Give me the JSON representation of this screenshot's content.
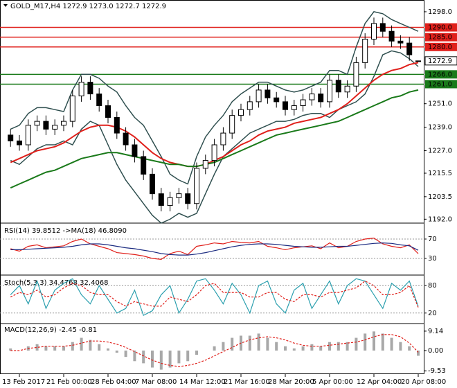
{
  "chart_data": [
    {
      "type": "candlestick",
      "title": "GOLD_M17,H4  1272.9 1273.0 1272.7 1272.9",
      "categories": [
        null,
        "13 Feb 2017",
        null,
        null,
        null,
        null,
        "21 Feb 00:00",
        null,
        null,
        null,
        null,
        "28 Feb 04:00",
        null,
        null,
        null,
        null,
        "7 Mar 08:00",
        null,
        null,
        null,
        null,
        "14 Mar 12:00",
        null,
        null,
        null,
        null,
        "21 Mar 16:00",
        null,
        null,
        null,
        null,
        "28 Mar 20:00",
        null,
        null,
        null,
        null,
        "5 Apr 00:00",
        null,
        null,
        null,
        null,
        "12 Apr 04:00",
        null,
        null,
        null,
        null,
        "20 Apr 08:00"
      ],
      "open": [
        1235,
        1232,
        1230,
        1240,
        1242,
        1238,
        1240,
        1242,
        1255,
        1262,
        1256,
        1250,
        1244,
        1236,
        1230,
        1224,
        1215,
        1205,
        1199,
        1203,
        1205,
        1200,
        1218,
        1222,
        1230,
        1236,
        1245,
        1248,
        1252,
        1258,
        1254,
        1252,
        1248,
        1250,
        1253,
        1256,
        1252,
        1263,
        1257,
        1260,
        1272,
        1284,
        1292,
        1288,
        1283,
        1282,
        1272.9
      ],
      "high": [
        1238,
        1235,
        1243,
        1245,
        1245,
        1243,
        1245,
        1258,
        1265,
        1265,
        1259,
        1253,
        1247,
        1239,
        1233,
        1227,
        1218,
        1208,
        1206,
        1208,
        1208,
        1221,
        1225,
        1233,
        1239,
        1248,
        1251,
        1255,
        1261,
        1261,
        1257,
        1255,
        1253,
        1256,
        1259,
        1259,
        1266,
        1266,
        1263,
        1275,
        1287,
        1295,
        1295,
        1291,
        1286,
        1285,
        1273
      ],
      "low": [
        1229,
        1227,
        1227,
        1237,
        1235,
        1235,
        1237,
        1239,
        1252,
        1253,
        1247,
        1241,
        1233,
        1227,
        1221,
        1212,
        1202,
        1196,
        1196,
        1200,
        1197,
        1197,
        1215,
        1219,
        1227,
        1233,
        1242,
        1245,
        1249,
        1251,
        1249,
        1245,
        1245,
        1247,
        1250,
        1249,
        1249,
        1254,
        1254,
        1257,
        1269,
        1281,
        1285,
        1280,
        1279,
        1273,
        1272.7
      ],
      "close": [
        1232,
        1230,
        1240,
        1242,
        1238,
        1240,
        1242,
        1255,
        1262,
        1256,
        1250,
        1244,
        1236,
        1230,
        1224,
        1215,
        1205,
        1199,
        1203,
        1205,
        1200,
        1218,
        1222,
        1230,
        1236,
        1245,
        1248,
        1252,
        1258,
        1254,
        1252,
        1248,
        1250,
        1253,
        1256,
        1252,
        1263,
        1257,
        1260,
        1272,
        1284,
        1292,
        1288,
        1283,
        1282,
        1276,
        1272.9
      ],
      "series": [
        {
          "color": "#2f4f4f",
          "width": 1.5,
          "values": [
            1238,
            1240,
            1246,
            1249,
            1249,
            1248,
            1247,
            1258,
            1266,
            1266,
            1264,
            1260,
            1257,
            1250,
            1244,
            1240,
            1232,
            1224,
            1215,
            1212,
            1210,
            1224,
            1234,
            1240,
            1245,
            1252,
            1256,
            1259,
            1262,
            1262,
            1260,
            1258,
            1257,
            1258,
            1260,
            1262,
            1268,
            1268,
            1266,
            1280,
            1292,
            1298,
            1297,
            1294,
            1292,
            1290,
            1288
          ]
        },
        {
          "color": "#2f4f4f",
          "width": 1.5,
          "values": [
            1222,
            1220,
            1224,
            1228,
            1230,
            1230,
            1232,
            1230,
            1238,
            1242,
            1240,
            1230,
            1220,
            1212,
            1206,
            1200,
            1194,
            1190,
            1192,
            1195,
            1193,
            1195,
            1205,
            1215,
            1224,
            1228,
            1232,
            1236,
            1238,
            1240,
            1242,
            1242,
            1243,
            1245,
            1246,
            1246,
            1244,
            1248,
            1250,
            1252,
            1256,
            1265,
            1276,
            1278,
            1277,
            1274,
            1270
          ]
        },
        {
          "color": "#e0201b",
          "width": 2,
          "values": [
            1221,
            1223,
            1225,
            1227,
            1228,
            1229,
            1231,
            1234,
            1237,
            1239,
            1240,
            1240,
            1239,
            1237,
            1234,
            1230,
            1226,
            1223,
            1221,
            1220,
            1219,
            1219,
            1220,
            1222,
            1224,
            1227,
            1230,
            1232,
            1235,
            1237,
            1238,
            1239,
            1241,
            1242,
            1243,
            1244,
            1246,
            1248,
            1251,
            1255,
            1259,
            1263,
            1266,
            1268,
            1269,
            1271,
            1272
          ]
        },
        {
          "color": "#1a7a1a",
          "width": 2,
          "values": [
            1208,
            1210,
            1212,
            1214,
            1216,
            1217,
            1219,
            1221,
            1223,
            1224,
            1225,
            1226,
            1226,
            1225,
            1224,
            1223,
            1222,
            1221,
            1220,
            1220,
            1219,
            1219,
            1220,
            1221,
            1223,
            1225,
            1227,
            1229,
            1231,
            1233,
            1235,
            1236,
            1237,
            1238,
            1239,
            1240,
            1241,
            1242,
            1244,
            1246,
            1248,
            1250,
            1252,
            1254,
            1255,
            1257,
            1258
          ]
        }
      ],
      "levels": [
        {
          "value": 1290,
          "label": "1290.0",
          "color": "#e0201b"
        },
        {
          "value": 1285,
          "label": "1285.0",
          "color": "#e0201b"
        },
        {
          "value": 1280,
          "label": "1280.0",
          "color": "#e0201b"
        },
        {
          "value": 1266,
          "label": "1266.0",
          "color": "#1a7a1a"
        },
        {
          "value": 1261,
          "label": "1261.0",
          "color": "#1a7a1a"
        }
      ],
      "ylim": [
        1190,
        1304
      ],
      "yticks": [
        {
          "value": 1298,
          "label": "1298.0"
        },
        {
          "value": 1251,
          "label": "1251.0"
        },
        {
          "value": 1239,
          "label": "1239.0"
        },
        {
          "value": 1227,
          "label": "1227.0"
        },
        {
          "value": 1215.5,
          "label": "1215.5"
        },
        {
          "value": 1203.5,
          "label": "1203.5"
        },
        {
          "value": 1192,
          "label": "1192.0"
        }
      ]
    },
    {
      "type": "line",
      "title": "RSI(14) 39.8512 ->MA(18) 46.8090",
      "series": [
        {
          "color": "#e0201b",
          "values": [
            50,
            45,
            55,
            58,
            52,
            54,
            56,
            65,
            70,
            60,
            55,
            50,
            42,
            40,
            38,
            35,
            30,
            28,
            40,
            45,
            38,
            55,
            58,
            62,
            60,
            65,
            63,
            62,
            65,
            55,
            52,
            48,
            52,
            54,
            56,
            50,
            62,
            52,
            55,
            65,
            70,
            72,
            60,
            55,
            52,
            58,
            39.8512
          ]
        },
        {
          "color": "#1a2a80",
          "values": [
            48,
            48,
            49,
            50,
            51,
            52,
            53,
            55,
            58,
            60,
            60,
            58,
            55,
            52,
            50,
            47,
            44,
            40,
            38,
            37,
            37,
            39,
            42,
            46,
            50,
            54,
            57,
            59,
            60,
            60,
            59,
            57,
            55,
            54,
            53,
            53,
            54,
            55,
            55,
            57,
            59,
            61,
            62,
            61,
            58,
            56,
            46.809
          ]
        }
      ],
      "ylim": [
        0,
        100
      ],
      "yticks": [
        70,
        30
      ]
    },
    {
      "type": "line",
      "title": "Stoch(5,3,3) 34.4768 32.4068",
      "series": [
        {
          "color": "#2a9fae",
          "values": [
            60,
            80,
            40,
            90,
            30,
            70,
            85,
            95,
            60,
            40,
            80,
            50,
            20,
            30,
            70,
            15,
            25,
            60,
            80,
            20,
            50,
            90,
            95,
            70,
            40,
            85,
            60,
            20,
            80,
            90,
            40,
            20,
            70,
            85,
            30,
            60,
            90,
            40,
            80,
            95,
            90,
            60,
            30,
            85,
            70,
            90,
            34.4768
          ]
        },
        {
          "color": "#e0201b",
          "dashed": true,
          "values": [
            55,
            65,
            60,
            70,
            55,
            60,
            75,
            85,
            80,
            65,
            60,
            60,
            45,
            35,
            45,
            40,
            35,
            35,
            55,
            50,
            45,
            60,
            80,
            85,
            65,
            65,
            65,
            55,
            55,
            65,
            65,
            50,
            45,
            60,
            60,
            55,
            65,
            65,
            70,
            75,
            90,
            80,
            60,
            60,
            65,
            80,
            32.4068
          ]
        }
      ],
      "ylim": [
        0,
        100
      ],
      "yticks": [
        80,
        20
      ]
    },
    {
      "type": "bar",
      "title": "MACD(12,26,9) -2.45 -0.81",
      "series": [
        {
          "kind": "bar",
          "color": "#a8a8a8",
          "values": [
            1,
            0,
            2,
            3,
            2,
            2,
            2,
            4,
            6,
            5,
            3,
            1,
            -1,
            -3,
            -5,
            -6,
            -8,
            -9,
            -8,
            -6,
            -5,
            -2,
            0,
            2,
            4,
            6,
            7,
            7,
            8,
            6,
            4,
            2,
            1,
            2,
            3,
            2,
            4,
            4,
            4,
            6,
            8,
            9,
            8,
            6,
            4,
            2,
            -2.45
          ]
        },
        {
          "kind": "line",
          "color": "#e0201b",
          "dashed": true,
          "values": [
            0,
            0,
            1,
            1.5,
            2,
            2,
            2,
            2.5,
            3.5,
            4.5,
            4.5,
            4,
            3,
            1.5,
            -0.5,
            -2.5,
            -4.5,
            -6,
            -7,
            -7.5,
            -7,
            -6,
            -4.5,
            -2.5,
            -0.5,
            1.5,
            3.5,
            5,
            6,
            6.5,
            6,
            5,
            3.5,
            2.5,
            2,
            2,
            2.5,
            3,
            3.5,
            4,
            5,
            6.5,
            7.5,
            7.5,
            6.5,
            3.5,
            -0.81
          ]
        }
      ],
      "ylim": [
        -11.1,
        12.7
      ],
      "yticks": [
        9.14,
        {
          "value": 0,
          "label": "0.00"
        },
        -9.53
      ]
    }
  ]
}
